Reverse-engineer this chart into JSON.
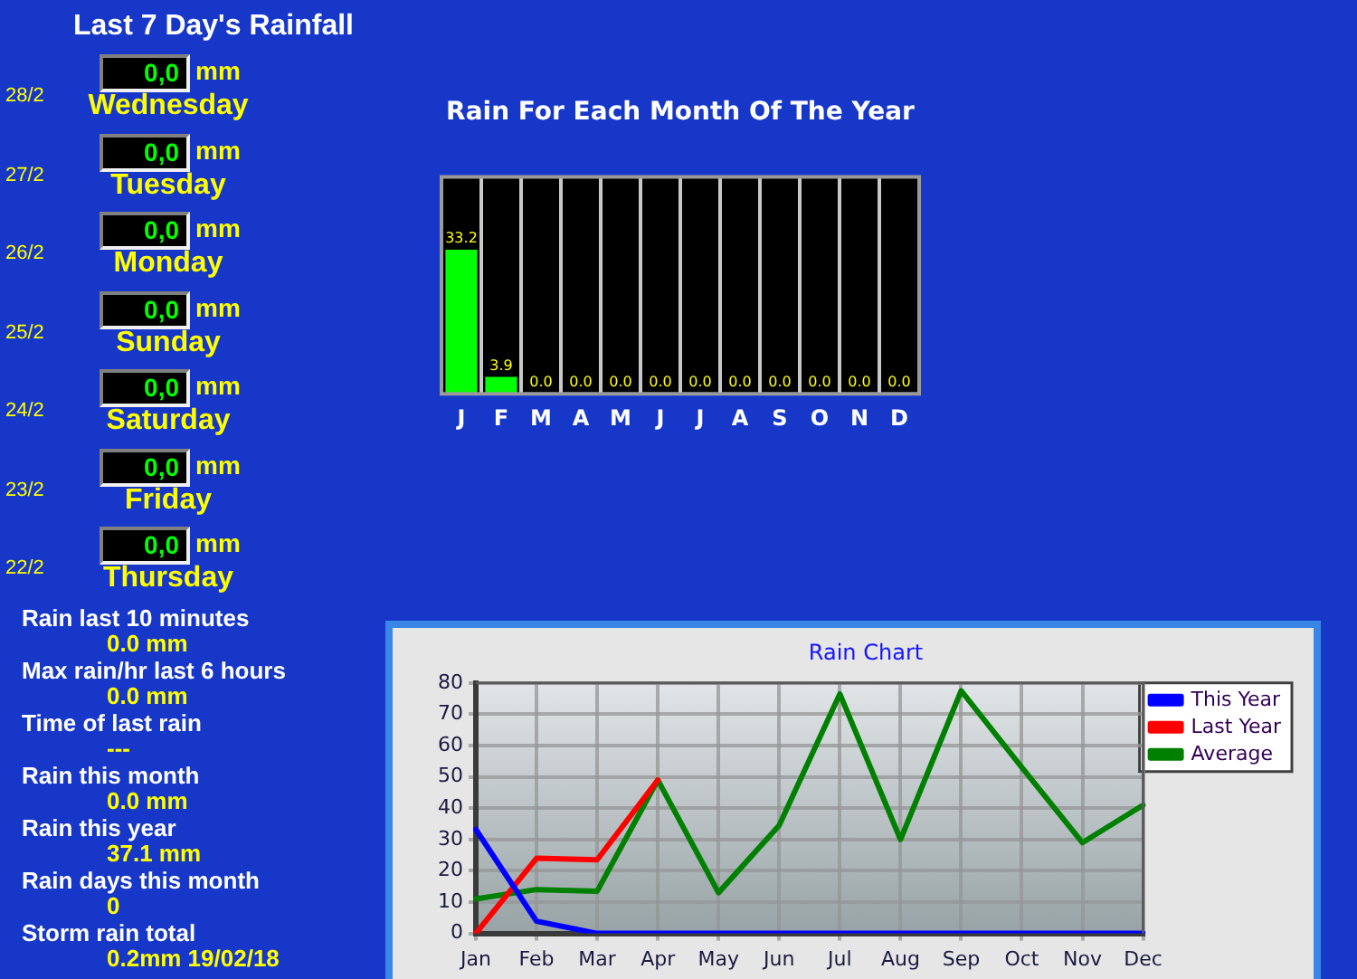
{
  "chart_data": [
    {
      "type": "other",
      "title": "Last 7 Day's Rainfall",
      "annotations": [
        "28/2",
        "0,0",
        "mm",
        "Wednesday",
        "27/2",
        "0,0",
        "mm",
        "Tuesday",
        "26/2",
        "0,0",
        "mm",
        "Monday",
        "25/2",
        "0,0",
        "mm",
        "Sunday",
        "24/2",
        "0,0",
        "mm",
        "Saturday",
        "23/2",
        "0,0",
        "mm",
        "Friday",
        "22/2",
        "0,0",
        "mm",
        "Thursday",
        "Rain last 10 minutes",
        "0.0 mm",
        "Max rain/hr last 6 hours",
        "0.0 mm",
        "Time of last rain",
        "---",
        "Rain this month",
        "0.0 mm",
        "Rain this year",
        "37.1 mm",
        "Rain days this month",
        "0",
        "Storm rain total",
        "0.2mm 19/02/18"
      ]
    },
    {
      "type": "bar",
      "title": "Rain For Each Month Of The Year",
      "categories": [
        "J",
        "F",
        "M",
        "A",
        "M",
        "J",
        "J",
        "A",
        "S",
        "O",
        "N",
        "D"
      ],
      "values": [
        33.2,
        3.9,
        0,
        0,
        0,
        0,
        0,
        0,
        0,
        0,
        0,
        0
      ],
      "value_labels": [
        "33.2",
        "3.9",
        "0.0",
        "0.0",
        "0.0",
        "0.0",
        "0.0",
        "0.0",
        "0.0",
        "0.0",
        "0.0",
        "0.0"
      ],
      "color": "#00ff00",
      "tick_labels": "x",
      "grid": "x"
    },
    {
      "type": "line",
      "title": "Rain Chart",
      "categories": [
        "Jan",
        "Feb",
        "Mar",
        "Apr",
        "May",
        "Jun",
        "Jul",
        "Aug",
        "Sep",
        "Oct",
        "Nov",
        "Dec"
      ],
      "ylim": [
        0,
        80
      ],
      "yticks": [
        0,
        10,
        20,
        30,
        40,
        50,
        60,
        70,
        80
      ],
      "grid": true,
      "legend": "top right",
      "marker": "none",
      "series": [
        {
          "name": "This Year",
          "color": "#0000ff",
          "values": [
            33.2,
            3.9,
            0,
            0,
            0,
            0,
            0,
            0,
            0,
            0,
            0,
            0
          ]
        },
        {
          "name": "Last Year",
          "color": "#ff0000",
          "values": [
            0,
            24,
            23.5,
            49,
            null,
            null,
            null,
            null,
            null,
            null,
            null,
            null
          ]
        },
        {
          "name": "Average",
          "color": "#008000",
          "values": [
            11,
            14,
            13.5,
            49,
            13,
            34.5,
            76.5,
            30,
            77.5,
            53,
            29,
            41
          ]
        }
      ]
    }
  ]
}
